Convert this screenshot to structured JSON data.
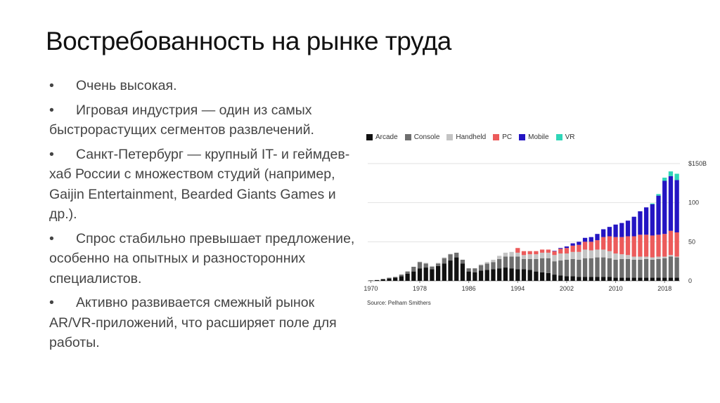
{
  "slide": {
    "title": "Востребованность на рынке труда",
    "bullets": [
      {
        "dot": "•",
        "text": "Очень высокая."
      },
      {
        "dot": "•",
        "text": "Игровая индустрия — один из самых быстрорастущих сегментов развлечений."
      },
      {
        "dot": "•",
        "text": "Санкт-Петербург — крупный IT- и геймдев-хаб России с множеством студий (например, Gaijin Entertainment, Bearded Giants Games и др.)."
      },
      {
        "dot": "•",
        "text": "Спрос стабильно превышает предложение, особенно на опытных и разносторонних специалистов."
      },
      {
        "dot": "•",
        "text": "Активно развивается смежный рынок AR/VR-приложений, что расширяет поле для работы."
      }
    ]
  },
  "chart_data": {
    "type": "bar",
    "stacked": true,
    "title": "",
    "xlabel": "",
    "ylabel": "",
    "source": "Source: Pelham Smithers",
    "ylim": [
      0,
      150
    ],
    "y_ticks": [
      "0",
      "50",
      "100",
      "$150B"
    ],
    "x_ticks": [
      "1970",
      "1978",
      "1986",
      "1994",
      "2002",
      "2010",
      "2018"
    ],
    "legend_position": "top-left",
    "grid": true,
    "categories": [
      "1970",
      "1971",
      "1972",
      "1973",
      "1974",
      "1975",
      "1976",
      "1977",
      "1978",
      "1979",
      "1980",
      "1981",
      "1982",
      "1983",
      "1984",
      "1985",
      "1986",
      "1987",
      "1988",
      "1989",
      "1990",
      "1991",
      "1992",
      "1993",
      "1994",
      "1995",
      "1996",
      "1997",
      "1998",
      "1999",
      "2000",
      "2001",
      "2002",
      "2003",
      "2004",
      "2005",
      "2006",
      "2007",
      "2008",
      "2009",
      "2010",
      "2011",
      "2012",
      "2013",
      "2014",
      "2015",
      "2016",
      "2017",
      "2018",
      "2019",
      "2020"
    ],
    "series": [
      {
        "name": "Arcade",
        "color": "#111111",
        "values": [
          0.5,
          1,
          2,
          3,
          4,
          6,
          9,
          12,
          16,
          17,
          15,
          19,
          22,
          26,
          30,
          22,
          12,
          11,
          13,
          14,
          15,
          16,
          17,
          16,
          15,
          15,
          14,
          12,
          11,
          10,
          8,
          7,
          6,
          6,
          5,
          5,
          5,
          5,
          5,
          5,
          4,
          4,
          4,
          4,
          4,
          4,
          4,
          4,
          4,
          4,
          4
        ]
      },
      {
        "name": "Console",
        "color": "#6e6e6e",
        "values": [
          0,
          0,
          0.5,
          1,
          1,
          2,
          3,
          6,
          8,
          5,
          3,
          3,
          7,
          8,
          6,
          5,
          4,
          5,
          7,
          8,
          9,
          12,
          14,
          15,
          16,
          13,
          14,
          16,
          18,
          19,
          17,
          19,
          21,
          22,
          22,
          24,
          24,
          25,
          25,
          24,
          23,
          24,
          24,
          23,
          23,
          24,
          23,
          24,
          25,
          27,
          26
        ]
      },
      {
        "name": "Handheld",
        "color": "#c4c4c4",
        "values": [
          0,
          0,
          0,
          0,
          0,
          0,
          0,
          0,
          0.5,
          1,
          1,
          1,
          1,
          0.5,
          0,
          0,
          0,
          0,
          1,
          2,
          3,
          4,
          5,
          6,
          5,
          5,
          6,
          6,
          7,
          7,
          8,
          9,
          8,
          9,
          10,
          11,
          10,
          10,
          10,
          9,
          8,
          6,
          5,
          4,
          4,
          3,
          3,
          3,
          2,
          2,
          1
        ]
      },
      {
        "name": "PC",
        "color": "#ec5b5b",
        "values": [
          0,
          0,
          0,
          0,
          0,
          0,
          0,
          0,
          0,
          0,
          0,
          0,
          0,
          0,
          0,
          0,
          0,
          0,
          0,
          0,
          0,
          0,
          0,
          0,
          6,
          5,
          4,
          4,
          4,
          4,
          5,
          6,
          7,
          8,
          9,
          10,
          11,
          12,
          16,
          19,
          21,
          22,
          24,
          26,
          28,
          28,
          28,
          28,
          29,
          31,
          31
        ]
      },
      {
        "name": "Mobile",
        "color": "#2415c3",
        "values": [
          0,
          0,
          0,
          0,
          0,
          0,
          0,
          0,
          0,
          0,
          0,
          0,
          0,
          0,
          0,
          0,
          0,
          0,
          0,
          0,
          0,
          0,
          0,
          0,
          0,
          0,
          0,
          0,
          0,
          0,
          0.5,
          1,
          2,
          3,
          4,
          5,
          6,
          8,
          10,
          12,
          16,
          18,
          20,
          25,
          30,
          35,
          40,
          50,
          68,
          70,
          67
        ]
      },
      {
        "name": "VR",
        "color": "#2fd6b8",
        "values": [
          0,
          0,
          0,
          0,
          0,
          0,
          0,
          0,
          0,
          0,
          0,
          0,
          0,
          0,
          0,
          0,
          0,
          0,
          0,
          0,
          0,
          0,
          0,
          0,
          0,
          0,
          0,
          0,
          0,
          0,
          0,
          0,
          0,
          0,
          0,
          0,
          0,
          0,
          0,
          0,
          0,
          0,
          0,
          0,
          0,
          0,
          1,
          2,
          4,
          6,
          8
        ]
      }
    ]
  }
}
